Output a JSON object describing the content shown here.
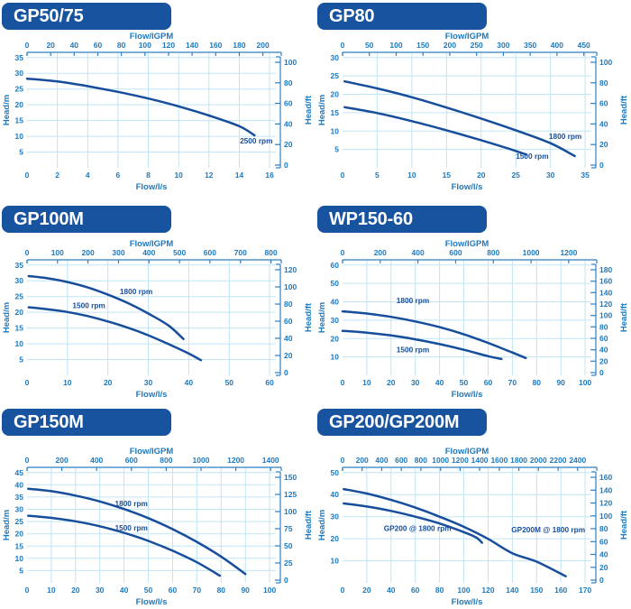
{
  "colors": {
    "banner_bg": "#17539f",
    "banner_text": "#ffffff",
    "curve": "#174e9b",
    "axis_text": "#1d79bf",
    "axis_line": "#2e7fc1",
    "grid": "#c0e5f4"
  },
  "axis_titles": {
    "top": "Flow/IGPM",
    "bottom": "Flow/l/s",
    "left": "Head/m",
    "right": "Head/ft"
  },
  "chart_data": [
    {
      "type": "line",
      "title": "GP50/75",
      "top_ticks": [
        0,
        20,
        40,
        60,
        80,
        100,
        120,
        140,
        160,
        180,
        200
      ],
      "top_axis_max_igpm": 211,
      "bottom_ticks": [
        0,
        2,
        4,
        6,
        8,
        10,
        12,
        14,
        16
      ],
      "left_ticks": [
        5,
        10,
        15,
        20,
        25,
        30,
        35
      ],
      "right_ticks": [
        0,
        20,
        40,
        60,
        80,
        100
      ],
      "series": [
        {
          "name": "2500 rpm",
          "label": {
            "x": 16.2,
            "y": 7.7,
            "align": "end"
          },
          "points": [
            [
              0,
              28.3
            ],
            [
              2,
              27.4
            ],
            [
              4,
              25.9
            ],
            [
              6,
              24.1
            ],
            [
              8,
              22.0
            ],
            [
              10,
              19.5
            ],
            [
              12,
              16.6
            ],
            [
              14,
              13.2
            ],
            [
              15,
              10.3
            ]
          ]
        }
      ]
    },
    {
      "type": "line",
      "title": "GP80",
      "top_ticks": [
        0,
        50,
        100,
        150,
        200,
        250,
        300,
        350,
        400,
        450
      ],
      "top_axis_max_igpm": 464,
      "bottom_ticks": [
        0,
        5,
        10,
        15,
        20,
        25,
        30,
        35
      ],
      "left_ticks": [
        5,
        10,
        15,
        20,
        25,
        30
      ],
      "right_ticks": [
        0,
        20,
        40,
        60,
        80,
        100
      ],
      "series": [
        {
          "name": "1800 rpm",
          "label": {
            "x": 34.5,
            "y": 7.8,
            "align": "end"
          },
          "points": [
            [
              0.3,
              23.5
            ],
            [
              5,
              21.6
            ],
            [
              10,
              19.2
            ],
            [
              15,
              16.4
            ],
            [
              20,
              13.4
            ],
            [
              25,
              10.2
            ],
            [
              30,
              6.7
            ],
            [
              33.5,
              3.2
            ]
          ]
        },
        {
          "name": "1500 rpm",
          "label": {
            "x": 25.0,
            "y": 2.4,
            "align": "start"
          },
          "points": [
            [
              0.3,
              16.5
            ],
            [
              5,
              14.9
            ],
            [
              10,
              12.7
            ],
            [
              15,
              10.2
            ],
            [
              20,
              7.5
            ],
            [
              24,
              5.2
            ],
            [
              26.5,
              3.6
            ]
          ]
        }
      ]
    },
    {
      "type": "line",
      "title": "GP100M",
      "top_ticks": [
        0,
        100,
        200,
        300,
        400,
        500,
        600,
        700,
        800
      ],
      "top_axis_max_igpm": 816,
      "bottom_ticks": [
        0,
        10,
        20,
        30,
        40,
        50,
        60
      ],
      "left_ticks": [
        5,
        10,
        15,
        20,
        25,
        30,
        35
      ],
      "right_ticks": [
        0,
        20,
        40,
        60,
        80,
        100,
        120
      ],
      "series": [
        {
          "name": "1800 rpm",
          "label": {
            "x": 27,
            "y": 25.7,
            "align": "middle"
          },
          "points": [
            [
              0.4,
              31.5
            ],
            [
              5,
              30.8
            ],
            [
              10,
              29.6
            ],
            [
              15,
              27.9
            ],
            [
              20,
              25.6
            ],
            [
              25,
              22.9
            ],
            [
              30,
              19.6
            ],
            [
              35,
              15.8
            ],
            [
              38.7,
              11.5
            ]
          ]
        },
        {
          "name": "1500 rpm",
          "label": {
            "x": 15.3,
            "y": 21.4,
            "align": "middle"
          },
          "points": [
            [
              0.4,
              21.6
            ],
            [
              5,
              21.0
            ],
            [
              10,
              20.1
            ],
            [
              15,
              18.8
            ],
            [
              20,
              17.1
            ],
            [
              25,
              15.1
            ],
            [
              30,
              12.7
            ],
            [
              35,
              9.9
            ],
            [
              40,
              6.9
            ],
            [
              43,
              4.8
            ]
          ]
        }
      ]
    },
    {
      "type": "line",
      "title": "WP150-60",
      "top_ticks": [
        0,
        200,
        400,
        600,
        800,
        1000,
        1200
      ],
      "top_axis_max_igpm": 1320,
      "bottom_ticks": [
        0,
        10,
        20,
        30,
        40,
        50,
        60,
        70,
        80,
        90,
        100
      ],
      "left_ticks": [
        10,
        20,
        30,
        40,
        50,
        60
      ],
      "right_ticks": [
        0,
        20,
        40,
        60,
        80,
        100,
        120,
        140,
        160,
        180
      ],
      "series": [
        {
          "name": "1800 rpm",
          "label": {
            "x": 29,
            "y": 39.3,
            "align": "middle"
          },
          "points": [
            [
              0,
              34.8
            ],
            [
              10,
              33.6
            ],
            [
              20,
              31.8
            ],
            [
              30,
              29.3
            ],
            [
              40,
              26.2
            ],
            [
              50,
              22.3
            ],
            [
              60,
              17.6
            ],
            [
              70,
              12.4
            ],
            [
              75.5,
              9.4
            ]
          ]
        },
        {
          "name": "1500 rpm",
          "label": {
            "x": 29,
            "y": 12.4,
            "align": "middle"
          },
          "points": [
            [
              0,
              24.2
            ],
            [
              10,
              23.2
            ],
            [
              20,
              21.7
            ],
            [
              30,
              19.6
            ],
            [
              40,
              17.0
            ],
            [
              50,
              13.9
            ],
            [
              60,
              10.4
            ],
            [
              65.5,
              8.9
            ]
          ]
        }
      ]
    },
    {
      "type": "line",
      "title": "GP150M",
      "top_ticks": [
        0,
        200,
        400,
        600,
        800,
        1000,
        1200,
        1400
      ],
      "top_axis_max_igpm": 1430,
      "bottom_ticks": [
        0,
        10,
        20,
        30,
        40,
        50,
        60,
        70,
        80,
        90,
        100
      ],
      "left_ticks": [
        5,
        10,
        15,
        20,
        25,
        30,
        35,
        40,
        45
      ],
      "right_ticks": [
        0,
        25,
        50,
        75,
        100,
        125,
        150
      ],
      "series": [
        {
          "name": "1800 rpm",
          "label": {
            "x": 43,
            "y": 31.3,
            "align": "middle"
          },
          "points": [
            [
              0.5,
              38.4
            ],
            [
              10,
              37.4
            ],
            [
              20,
              35.6
            ],
            [
              30,
              33.2
            ],
            [
              40,
              30.1
            ],
            [
              50,
              26.4
            ],
            [
              60,
              21.9
            ],
            [
              70,
              16.7
            ],
            [
              80,
              10.7
            ],
            [
              90,
              3.6
            ]
          ]
        },
        {
          "name": "1500 rpm",
          "label": {
            "x": 43,
            "y": 21.3,
            "align": "middle"
          },
          "points": [
            [
              0.5,
              27.4
            ],
            [
              10,
              26.5
            ],
            [
              20,
              25.1
            ],
            [
              30,
              23.1
            ],
            [
              40,
              20.4
            ],
            [
              50,
              17.1
            ],
            [
              60,
              13.1
            ],
            [
              70,
              8.4
            ],
            [
              79.5,
              2.9
            ]
          ]
        }
      ]
    },
    {
      "type": "line",
      "title": "GP200/GP200M",
      "top_ticks": [
        0,
        200,
        400,
        600,
        800,
        1000,
        1200,
        1400,
        1600,
        1800,
        2000,
        2200,
        2400
      ],
      "top_axis_max_igpm": 2540,
      "bottom_ticks": [
        0,
        20,
        40,
        60,
        80,
        100,
        120,
        140,
        150,
        160,
        170
      ],
      "left_ticks": [
        10,
        20,
        30,
        40,
        50
      ],
      "right_ticks": [
        0,
        20,
        40,
        60,
        80,
        100,
        120,
        140,
        160
      ],
      "series": [
        {
          "name": "GP200 @ 1800 rpm",
          "label": {
            "x": 34,
            "y": 23.5,
            "align": "start"
          },
          "points": [
            [
              1,
              36.0
            ],
            [
              20,
              34.6
            ],
            [
              40,
              32.6
            ],
            [
              60,
              30.0
            ],
            [
              80,
              26.9
            ],
            [
              100,
              23.0
            ],
            [
              110,
              20.6
            ],
            [
              115,
              18.2
            ]
          ]
        },
        {
          "name": "GP200M @ 1800 rpm",
          "label": {
            "x": 170,
            "y": 23.0,
            "align": "end"
          },
          "points": [
            [
              1,
              42.5
            ],
            [
              20,
              40.5
            ],
            [
              40,
              37.6
            ],
            [
              60,
              34.1
            ],
            [
              80,
              30.0
            ],
            [
              100,
              25.4
            ],
            [
              120,
              19.9
            ],
            [
              140,
              13.4
            ],
            [
              150,
              9.6
            ],
            [
              162,
              3.0
            ]
          ]
        }
      ]
    }
  ]
}
